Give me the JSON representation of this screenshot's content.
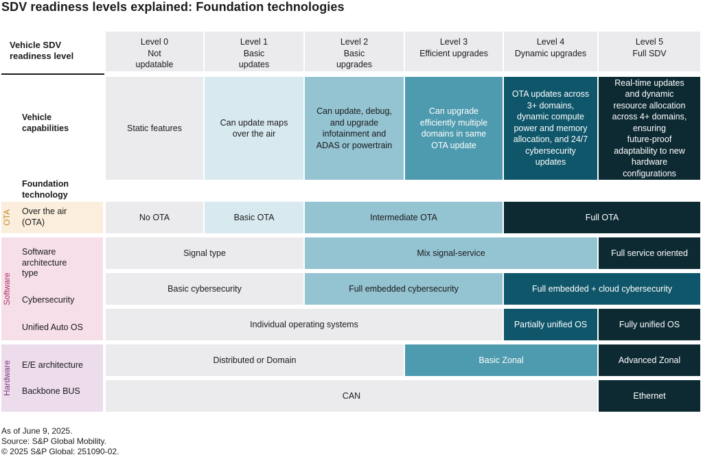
{
  "title": "SDV readiness levels explained: Foundation technologies",
  "row_header": "Vehicle SDV\nreadiness level",
  "levels": [
    "Level 0\nNot\nupdatable",
    "Level 1\nBasic\nupdates",
    "Level 2\nBasic\nupgrades",
    "Level 3\nEfficient upgrades",
    "Level 4\nDynamic upgrades",
    "Level 5\nFull SDV"
  ],
  "capabilities": {
    "label": "Vehicle\ncapabilities",
    "cells": [
      "Static features",
      "Can update maps\nover the air",
      "Can update, debug,\nand upgrade\ninfotainment and\nADAS or powertrain",
      "Can upgrade\nefficiently multiple\ndomains in same\nOTA update",
      "OTA updates across\n3+ domains,\ndynamic compute\npower and memory\nallocation, and 24/7\ncybersecurity\nupdates",
      "Real-time updates\nand dynamic\nresource allocation\nacross 4+ domains,\nensuring\nfuture-proof\nadaptability to new\nhardware\nconfigurations"
    ]
  },
  "foundation_label": "Foundation\ntechnology",
  "groups": {
    "ota": "OTA",
    "software": "Software",
    "hardware": "Hardware"
  },
  "rows": {
    "ota": {
      "label": "Over the air\n(OTA)",
      "cells": [
        "No OTA",
        "Basic OTA",
        "Intermediate OTA",
        "Full OTA"
      ]
    },
    "sw_arch": {
      "label": "Software\narchitecture\ntype",
      "cells": [
        "Signal type",
        "Mix signal-service",
        "Full service oriented"
      ]
    },
    "cyber": {
      "label": "Cybersecurity",
      "cells": [
        "Basic cybersecurity",
        "Full embedded cybersecurity",
        "Full embedded + cloud cybersecurity"
      ]
    },
    "os": {
      "label": "Unified Auto OS",
      "cells": [
        "Individual operating systems",
        "Partially unified OS",
        "Fully unified OS"
      ]
    },
    "ee": {
      "label": "E/E architecture",
      "cells": [
        "Distributed or Domain",
        "Basic Zonal",
        "Advanced Zonal"
      ]
    },
    "bus": {
      "label": "Backbone BUS",
      "cells": [
        "CAN",
        "Ethernet"
      ]
    }
  },
  "footer": {
    "line1": "As of June 9, 2025.",
    "line2": "Source: S&P Global Mobility.",
    "line3": "© 2025 S&P Global: 251090-02."
  },
  "colors": {
    "grey": "#ebebee",
    "light": "#d9e9f0",
    "mid": "#94c3d2",
    "teal": "#4e9aae",
    "dark": "#0f566a",
    "navy": "#0d2a33",
    "ota_band": "#fbeedc",
    "software_band": "#f6dfe9",
    "hardware_band": "#ecdcec",
    "ota_text": "#c98a2e",
    "software_text": "#b0306a",
    "hardware_text": "#7a3a7a"
  }
}
